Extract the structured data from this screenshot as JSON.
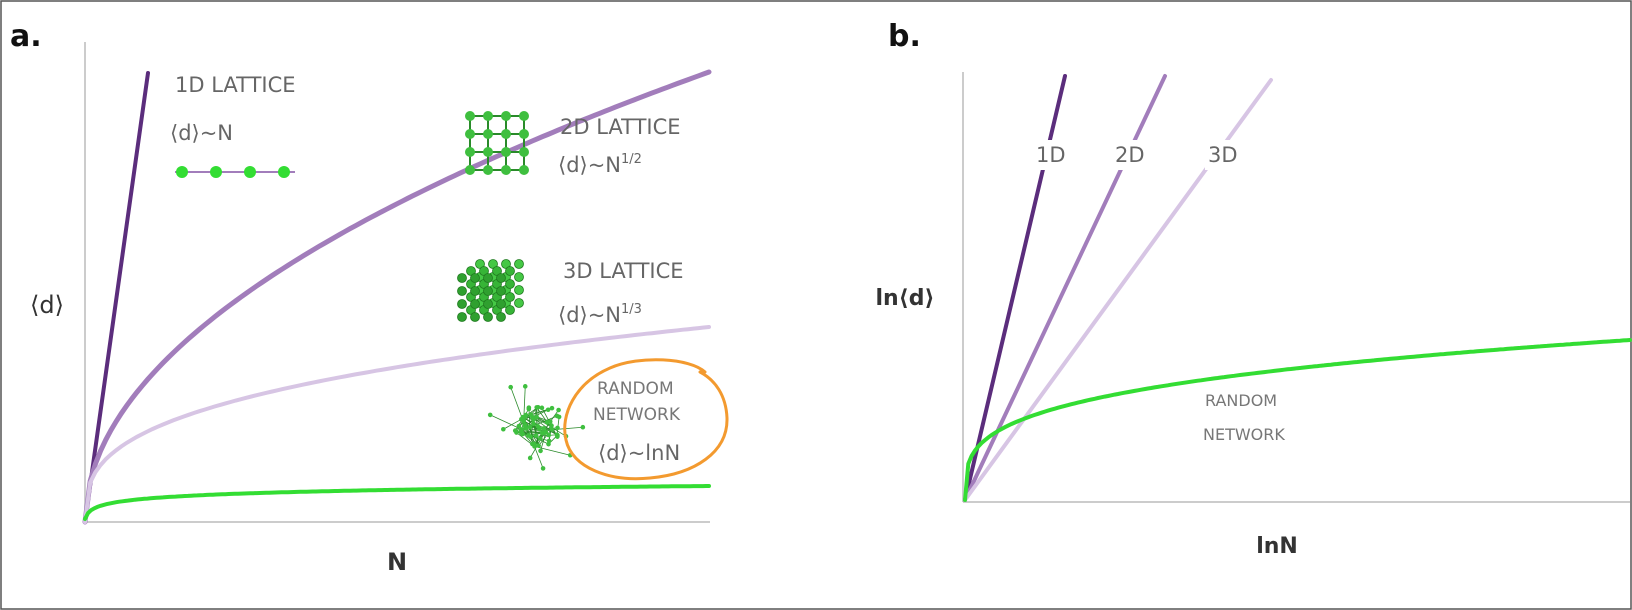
{
  "chart_data": [
    {
      "type": "line",
      "panel": "a.",
      "xlabel": "N",
      "ylabel": "⟨d⟩",
      "grid": false,
      "series": [
        {
          "name": "1D LATTICE",
          "formula": "⟨d⟩~N",
          "color": "#5b2d7c"
        },
        {
          "name": "2D LATTICE",
          "formula": "⟨d⟩~N",
          "exponent": "1/2",
          "color": "#a27dbb"
        },
        {
          "name": "3D LATTICE",
          "formula": "⟨d⟩~N",
          "exponent": "1/3",
          "color": "#d7c5e4"
        },
        {
          "name": "RANDOM NETWORK",
          "formula": "⟨d⟩~lnN",
          "color": "#33dd33"
        }
      ],
      "annotation_color": "#f39a2f"
    },
    {
      "type": "line",
      "panel": "b.",
      "xlabel": "lnN",
      "ylabel": "ln⟨d⟩",
      "grid": false,
      "series": [
        {
          "name": "1D",
          "color": "#5b2d7c"
        },
        {
          "name": "2D",
          "color": "#a27dbb"
        },
        {
          "name": "3D",
          "color": "#d7c5e4"
        },
        {
          "name": "RANDOM NETWORK",
          "color": "#33dd33"
        }
      ]
    }
  ]
}
